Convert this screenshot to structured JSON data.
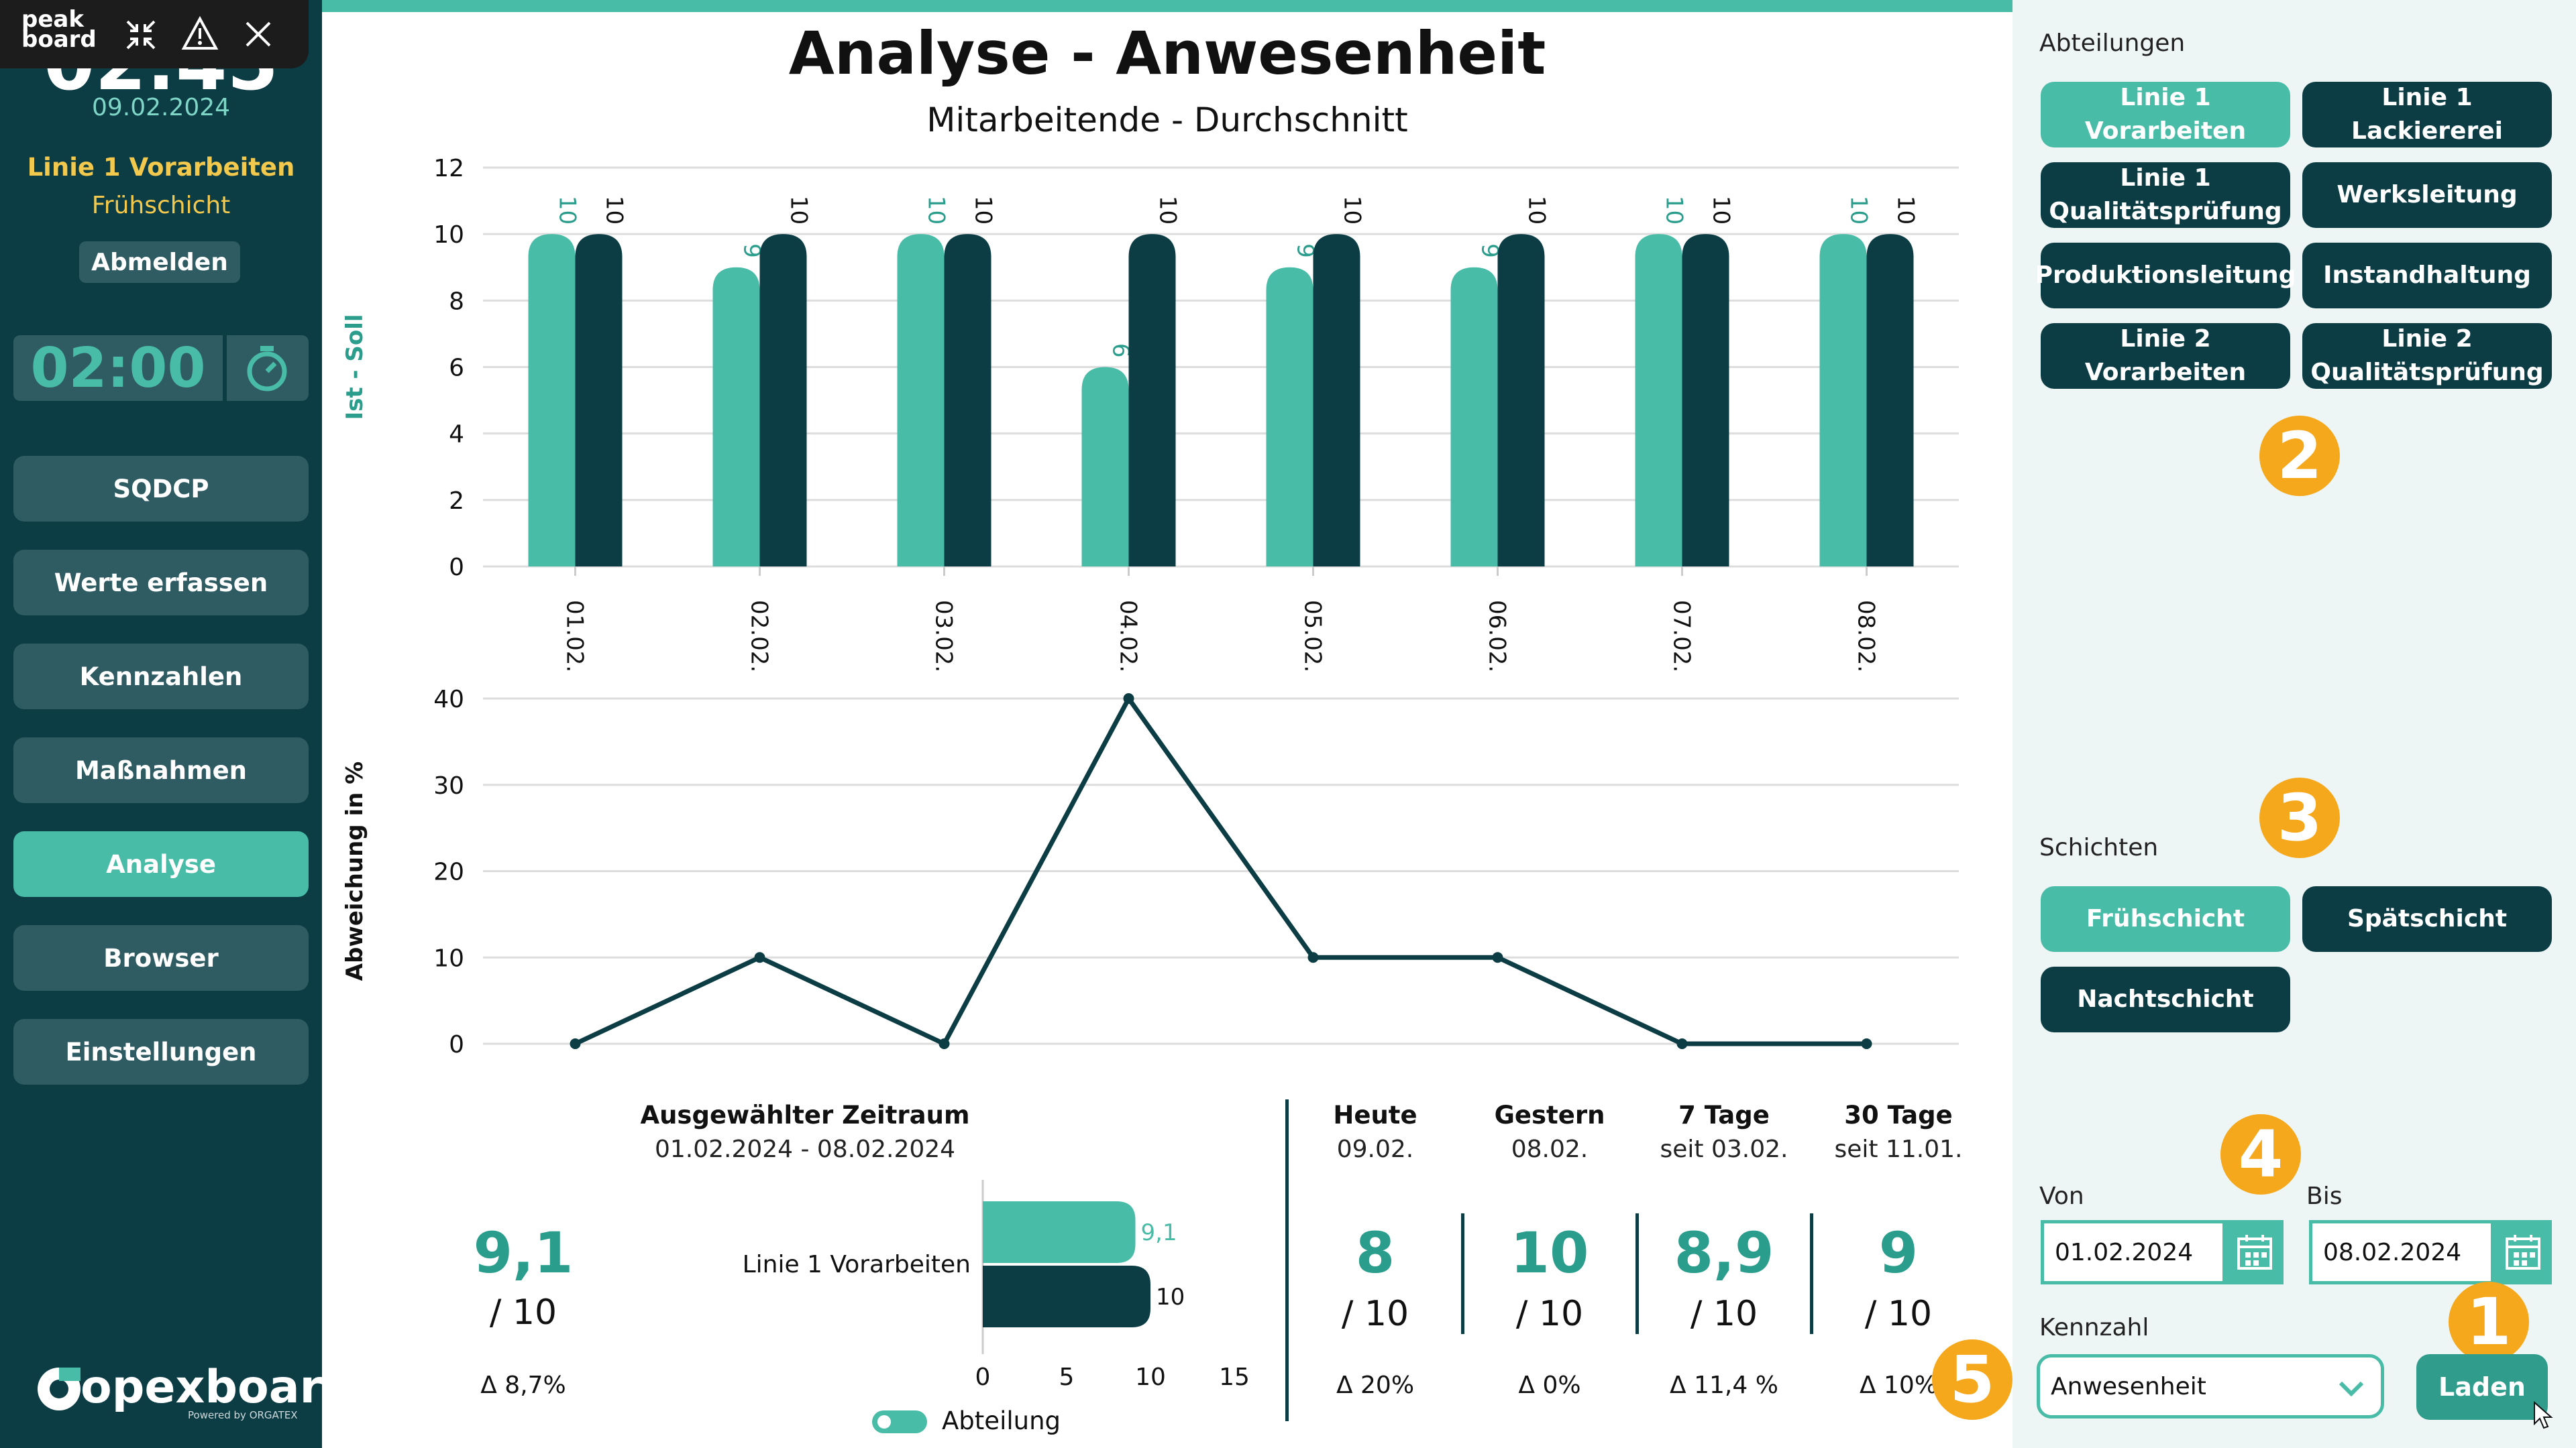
{
  "sidebar": {
    "logo": "peak board",
    "clock_partial": "02:45",
    "date": "09.02.2024",
    "department": "Linie 1 Vorarbeiten",
    "shift": "Frühschicht",
    "logout_label": "Abmelden",
    "timer": "02:00",
    "nav": [
      "SQDCP",
      "Werte erfassen",
      "Kennzahlen",
      "Maßnahmen",
      "Analyse",
      "Browser",
      "Einstellungen"
    ],
    "active_nav": "Analyse",
    "brand": "opexboard",
    "brand_sub": "Powered by ORGATEX"
  },
  "header": {
    "title": "Analyse - Anwesenheit",
    "subtitle": "Mitarbeitende - Durchschnitt"
  },
  "chart_data": [
    {
      "type": "bar",
      "ylabel": "Ist - Soll",
      "categories": [
        "01.02.",
        "02.02.",
        "03.02.",
        "04.02.",
        "05.02.",
        "06.02.",
        "07.02.",
        "08.02."
      ],
      "series": [
        {
          "values": [
            10,
            9,
            10,
            6,
            9,
            9,
            10,
            10
          ]
        },
        {
          "values": [
            10,
            10,
            10,
            10,
            10,
            10,
            10,
            10
          ]
        }
      ],
      "ylim": [
        0,
        12
      ],
      "yticks": [
        "0",
        "2",
        "4",
        "6",
        "8",
        "10",
        "12"
      ],
      "grid": true
    },
    {
      "type": "line",
      "ylabel": "Abweichung in %",
      "categories": [
        "01.02.",
        "02.02.",
        "03.02.",
        "04.02.",
        "05.02.",
        "06.02.",
        "07.02.",
        "08.02."
      ],
      "series": [
        {
          "values": [
            0,
            10,
            0,
            40,
            10,
            10,
            0,
            0
          ]
        }
      ],
      "ylim": [
        0,
        40
      ],
      "yticks": [
        "0",
        "10",
        "20",
        "30",
        "40"
      ],
      "grid": true
    },
    {
      "type": "bar",
      "orientation": "horizontal",
      "categories": [
        "Linie 1 Vorarbeiten"
      ],
      "series": [
        {
          "name": "Abteilung",
          "values": [
            9.1
          ]
        },
        {
          "values": [
            10
          ]
        }
      ],
      "value_labels": [
        "9,1",
        "10"
      ],
      "xlim": [
        0,
        15
      ],
      "xticks": [
        "0",
        "5",
        "10",
        "15"
      ],
      "legend": "bottom"
    }
  ],
  "summary": {
    "head": "Ausgewählter Zeitraum",
    "range": "01.02.2024 - 08.02.2024",
    "value": "9,1",
    "target": "/ 10",
    "delta": "Δ 8,7%"
  },
  "kpis": [
    {
      "head": "Heute",
      "sub": "09.02.",
      "value": "8",
      "target": "/ 10",
      "delta": "Δ 20%"
    },
    {
      "head": "Gestern",
      "sub": "08.02.",
      "value": "10",
      "target": "/ 10",
      "delta": "Δ 0%"
    },
    {
      "head": "7 Tage",
      "sub": "seit 03.02.",
      "value": "8,9",
      "target": "/ 10",
      "delta": "Δ 11,4 %"
    },
    {
      "head": "30 Tage",
      "sub": "seit 11.01.",
      "value": "9",
      "target": "/ 10",
      "delta": "Δ 10%"
    }
  ],
  "filters": {
    "departments_label": "Abteilungen",
    "departments": [
      "Linie 1 Vorarbeiten",
      "Linie 1 Lackiererei",
      "Linie 1 Qualitätsprüfung",
      "Werksleitung",
      "Produktionsleitung",
      "Instandhaltung",
      "Linie 2 Vorarbeiten",
      "Linie 2 Qualitätsprüfung"
    ],
    "selected_department": "Linie 1 Vorarbeiten",
    "shifts_label": "Schichten",
    "shifts": [
      "Frühschicht",
      "Spätschicht",
      "Nachtschicht"
    ],
    "selected_shift": "Frühschicht",
    "from_label": "Von",
    "from_value": "01.02.2024",
    "to_label": "Bis",
    "to_value": "08.02.2024",
    "metric_label": "Kennzahl",
    "metric_value": "Anwesenheit",
    "load_label": "Laden",
    "badges": [
      "1",
      "2",
      "3",
      "4",
      "5"
    ]
  },
  "colors": {
    "teal": "#48bca7",
    "dark": "#0c3d45",
    "orange": "#f6a81c",
    "accent_text": "#2a9d8c",
    "yellow": "#f2c94c"
  }
}
